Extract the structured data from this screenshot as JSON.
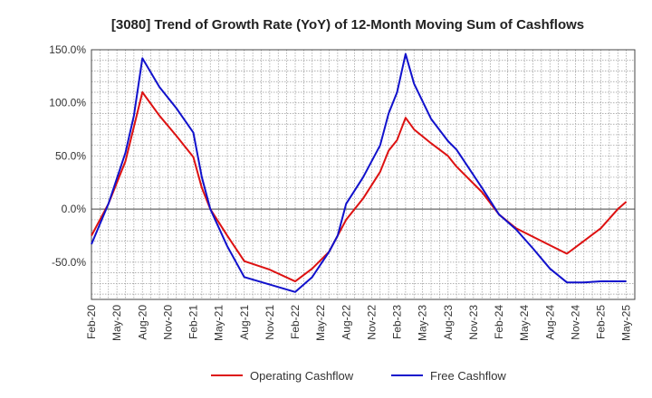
{
  "chart_data": {
    "type": "line",
    "title": "[3080]  Trend of Growth Rate (YoY) of 12-Month Moving Sum of Cashflows",
    "xlabel": "",
    "ylabel": "",
    "ylim": [
      -85,
      150
    ],
    "y_ticks": [
      150,
      100,
      50,
      0,
      -50
    ],
    "y_tick_labels": [
      "150.0%",
      "100.0%",
      "50.0%",
      "0.0%",
      "-50.0%"
    ],
    "x_tick_labels": [
      "Feb-20",
      "May-20",
      "Aug-20",
      "Nov-20",
      "Feb-21",
      "May-21",
      "Aug-21",
      "Nov-21",
      "Feb-22",
      "May-22",
      "Aug-22",
      "Nov-22",
      "Feb-23",
      "May-23",
      "Aug-23",
      "Nov-23",
      "Feb-24",
      "May-24",
      "Aug-24",
      "Nov-24",
      "Feb-25",
      "May-25"
    ],
    "x_index_start": "Feb-20",
    "months_count": 64,
    "grid": true,
    "legend_position": "bottom-center",
    "series": [
      {
        "name": "Operating Cashflow",
        "color": "#dd1111",
        "points": [
          [
            0,
            -25
          ],
          [
            2,
            5
          ],
          [
            4,
            45
          ],
          [
            6,
            110
          ],
          [
            8,
            88
          ],
          [
            10,
            69
          ],
          [
            12,
            49
          ],
          [
            13,
            20
          ],
          [
            14,
            0
          ],
          [
            16,
            -25
          ],
          [
            18,
            -49
          ],
          [
            21,
            -57
          ],
          [
            24,
            -68
          ],
          [
            26,
            -56
          ],
          [
            28,
            -40
          ],
          [
            30,
            -10
          ],
          [
            32,
            10
          ],
          [
            34,
            35
          ],
          [
            35,
            55
          ],
          [
            36,
            65
          ],
          [
            37,
            86
          ],
          [
            38,
            75
          ],
          [
            40,
            62
          ],
          [
            42,
            50
          ],
          [
            43,
            40
          ],
          [
            46,
            16
          ],
          [
            48,
            -5
          ],
          [
            50,
            -18
          ],
          [
            54,
            -34
          ],
          [
            56,
            -42
          ],
          [
            58,
            -30
          ],
          [
            60,
            -18
          ],
          [
            62,
            0
          ],
          [
            63,
            7
          ]
        ]
      },
      {
        "name": "Free Cashflow",
        "color": "#1111cc",
        "points": [
          [
            0,
            -33
          ],
          [
            2,
            5
          ],
          [
            4,
            53
          ],
          [
            5,
            88
          ],
          [
            6,
            142
          ],
          [
            8,
            115
          ],
          [
            10,
            95
          ],
          [
            12,
            72
          ],
          [
            13,
            30
          ],
          [
            14,
            0
          ],
          [
            16,
            -35
          ],
          [
            18,
            -64
          ],
          [
            21,
            -71
          ],
          [
            24,
            -78
          ],
          [
            26,
            -64
          ],
          [
            28,
            -40
          ],
          [
            29,
            -25
          ],
          [
            30,
            5
          ],
          [
            32,
            30
          ],
          [
            34,
            60
          ],
          [
            35,
            90
          ],
          [
            36,
            110
          ],
          [
            37,
            146
          ],
          [
            38,
            118
          ],
          [
            40,
            85
          ],
          [
            42,
            64
          ],
          [
            43,
            56
          ],
          [
            46,
            20
          ],
          [
            48,
            -5
          ],
          [
            50,
            -19
          ],
          [
            52,
            -37
          ],
          [
            54,
            -56
          ],
          [
            56,
            -69
          ],
          [
            58,
            -69
          ],
          [
            60,
            -68
          ],
          [
            63,
            -68
          ]
        ]
      }
    ]
  }
}
